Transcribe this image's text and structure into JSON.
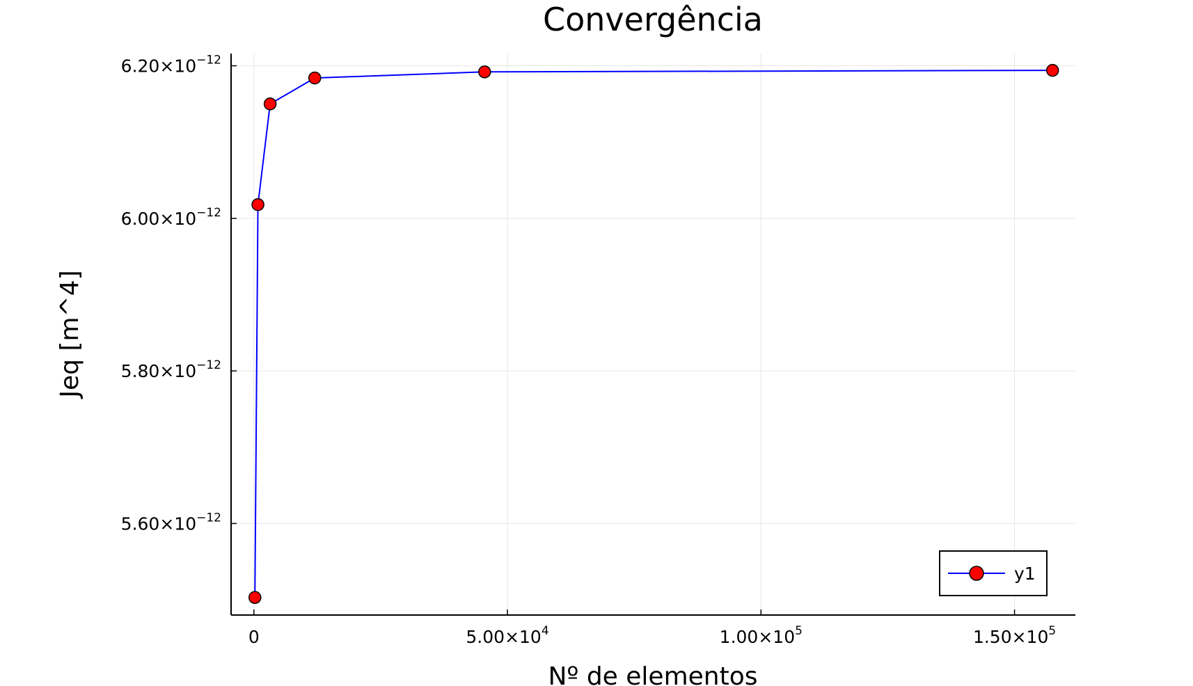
{
  "chart_data": {
    "type": "line",
    "title": "Convergência",
    "xlabel": "Nº de elementos",
    "ylabel": "Jeq [m^4]",
    "xlim": [
      -4500,
      162000
    ],
    "ylim": [
      5.48e-12,
      6.216e-12
    ],
    "grid": true,
    "legend_position": "bottom-right",
    "x_ticks": [
      {
        "value": 0,
        "mantissa": "0",
        "exponent": ""
      },
      {
        "value": 50000,
        "mantissa": "5.00×10",
        "exponent": "4"
      },
      {
        "value": 100000,
        "mantissa": "1.00×10",
        "exponent": "5"
      },
      {
        "value": 150000,
        "mantissa": "1.50×10",
        "exponent": "5"
      }
    ],
    "y_ticks": [
      {
        "value": 5.6e-12,
        "mantissa": "5.60×10",
        "exponent": "−12"
      },
      {
        "value": 5.8e-12,
        "mantissa": "5.80×10",
        "exponent": "−12"
      },
      {
        "value": 6e-12,
        "mantissa": "6.00×10",
        "exponent": "−12"
      },
      {
        "value": 6.2e-12,
        "mantissa": "6.20×10",
        "exponent": "−12"
      }
    ],
    "series": [
      {
        "name": "y1",
        "line_color": "#0000ff",
        "marker_color": "#ff0000",
        "marker_edge_color": "#000000",
        "x": [
          200,
          800,
          3200,
          12000,
          45500,
          157500
        ],
        "y": [
          5.503e-12,
          6.018e-12,
          6.15e-12,
          6.184e-12,
          6.192e-12,
          6.194e-12
        ]
      }
    ]
  }
}
